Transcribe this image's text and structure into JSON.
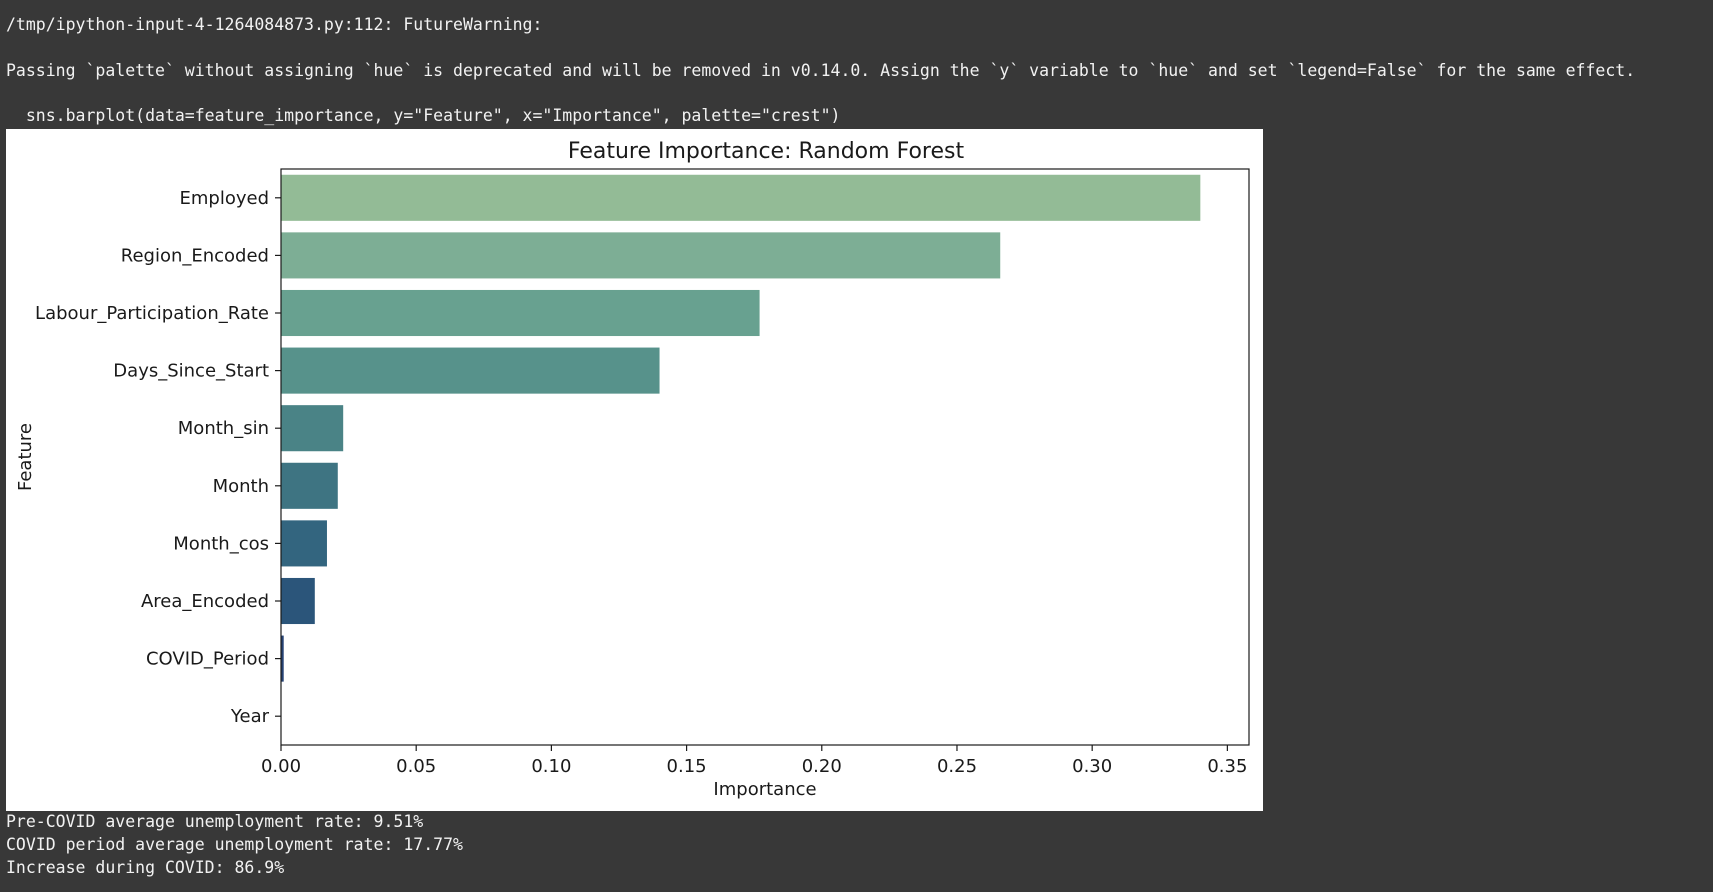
{
  "output": {
    "warning_lines": [
      "/tmp/ipython-input-4-1264084873.py:112: FutureWarning:",
      "Passing `palette` without assigning `hue` is deprecated and will be removed in v0.14.0. Assign the `y` variable to `hue` and set `legend=False` for the same effect.",
      "  sns.barplot(data=feature_importance, y=\"Feature\", x=\"Importance\", palette=\"crest\")"
    ],
    "result_lines": [
      "Pre-COVID average unemployment rate: 9.51%",
      "COVID period average unemployment rate: 17.77%",
      "Increase during COVID: 86.9%"
    ]
  },
  "chart_data": {
    "type": "bar",
    "orientation": "horizontal",
    "title": "Feature Importance: Random Forest",
    "xlabel": "Importance",
    "ylabel": "Feature",
    "categories": [
      "Employed",
      "Region_Encoded",
      "Labour_Participation_Rate",
      "Days_Since_Start",
      "Month_sin",
      "Month",
      "Month_cos",
      "Area_Encoded",
      "COVID_Period",
      "Year"
    ],
    "values": [
      0.34,
      0.266,
      0.177,
      0.14,
      0.023,
      0.021,
      0.017,
      0.0125,
      0.001,
      0.0
    ],
    "colors": [
      "#93bb96",
      "#7dae95",
      "#68a190",
      "#57928b",
      "#4a8386",
      "#3e7482",
      "#33657f",
      "#2b557a",
      "#264374",
      "#22336b"
    ],
    "xlim": [
      0,
      0.358
    ],
    "xticks": [
      0.0,
      0.05,
      0.1,
      0.15,
      0.2,
      0.25,
      0.3,
      0.35
    ],
    "xtick_labels": [
      "0.00",
      "0.05",
      "0.10",
      "0.15",
      "0.20",
      "0.25",
      "0.30",
      "0.35"
    ],
    "grid": false,
    "legend": false
  }
}
